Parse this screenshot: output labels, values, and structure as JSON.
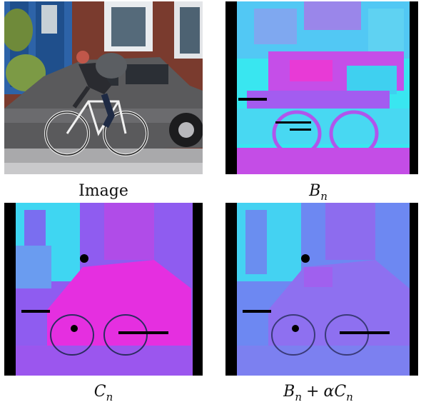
{
  "figure": {
    "panels": [
      {
        "caption": "Image"
      },
      {
        "caption_main": "B",
        "caption_sub": "n"
      },
      {
        "caption_main": "C",
        "caption_sub": "n"
      },
      {
        "caption_a": "B",
        "caption_a_sub": "n",
        "caption_op": "+",
        "caption_alpha": "α",
        "caption_b": "C",
        "caption_b_sub": "n"
      }
    ]
  }
}
